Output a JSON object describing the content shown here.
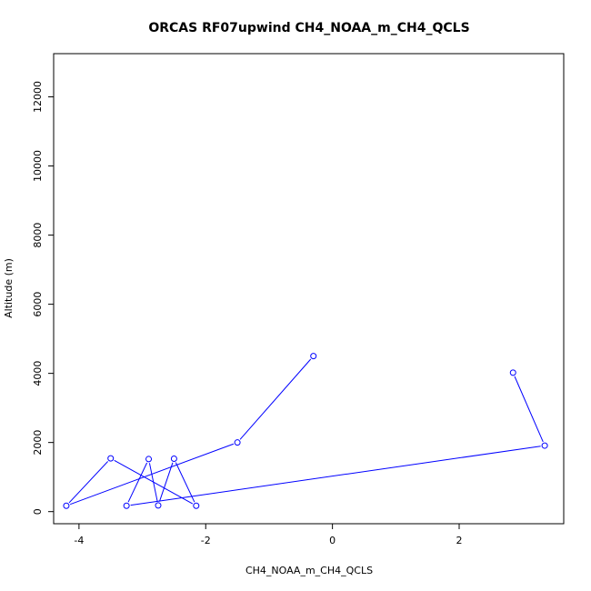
{
  "chart_data": {
    "type": "line",
    "title": "ORCAS RF07upwind CH4_NOAA_m_CH4_QCLS",
    "xlabel": "CH4_NOAA_m_CH4_QCLS",
    "ylabel": "Altitude (m)",
    "xlim": [
      -4.4,
      3.65
    ],
    "ylim": [
      -350,
      13250
    ],
    "xticks": [
      -4,
      -2,
      0,
      2
    ],
    "yticks": [
      0,
      2000,
      4000,
      6000,
      8000,
      10000,
      12000
    ],
    "grid": false,
    "legend": "none",
    "series": [
      {
        "color": "#0000ff",
        "marker": "open-circle",
        "points": [
          {
            "x": 2.85,
            "y": 4020
          },
          {
            "x": 3.35,
            "y": 1910
          },
          {
            "x": -3.25,
            "y": 170
          },
          {
            "x": -2.9,
            "y": 1520
          },
          {
            "x": -2.75,
            "y": 180
          },
          {
            "x": -2.5,
            "y": 1530
          },
          {
            "x": -2.15,
            "y": 170
          },
          {
            "x": -3.5,
            "y": 1540
          },
          {
            "x": -4.2,
            "y": 170
          },
          {
            "x": -1.5,
            "y": 2000
          },
          {
            "x": -0.3,
            "y": 4500
          }
        ]
      }
    ]
  }
}
